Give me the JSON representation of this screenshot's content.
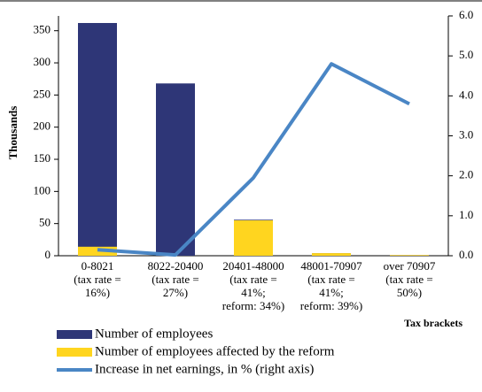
{
  "chart_data": {
    "type": "bar-line",
    "y_axis_label": "Thousands",
    "x_axis_label": "Tax brackets",
    "categories": [
      "0-8021\n(tax rate =\n16%)",
      "8022-20400\n(tax rate =\n27%)",
      "20401-48000\n(tax rate =\n41%;\nreform: 34%)",
      "48001-70907\n(tax rate =\n41%;\nreform: 39%)",
      "over 70907\n(tax rate =\n50%)"
    ],
    "series": [
      {
        "name": "Number of employees",
        "color": "#2e3677",
        "type": "bar",
        "values": [
          362,
          268,
          56,
          4,
          1
        ]
      },
      {
        "name": "Number of employees affected by the reform",
        "color": "#ffd51f",
        "type": "bar",
        "values": [
          14,
          0,
          55,
          4,
          1
        ]
      },
      {
        "name": "Increase in net earnings, in % (right axis)",
        "color": "#4a86c5",
        "type": "line",
        "axis": "y2",
        "values": [
          0.15,
          0.02,
          1.95,
          4.8,
          3.8
        ]
      }
    ],
    "ylim": [
      0,
      373
    ],
    "yticks": [
      0,
      50,
      100,
      150,
      200,
      250,
      300,
      350
    ],
    "y2lim": [
      0,
      6
    ],
    "y2ticks": [
      {
        "value": 0,
        "label": "0.0"
      },
      {
        "value": 1,
        "label": "1.0"
      },
      {
        "value": 2,
        "label": "2.0"
      },
      {
        "value": 3,
        "label": "3.0"
      },
      {
        "value": 4,
        "label": "4.0"
      },
      {
        "value": 5,
        "label": "5.0"
      },
      {
        "value": 6,
        "label": "6.0"
      }
    ]
  }
}
